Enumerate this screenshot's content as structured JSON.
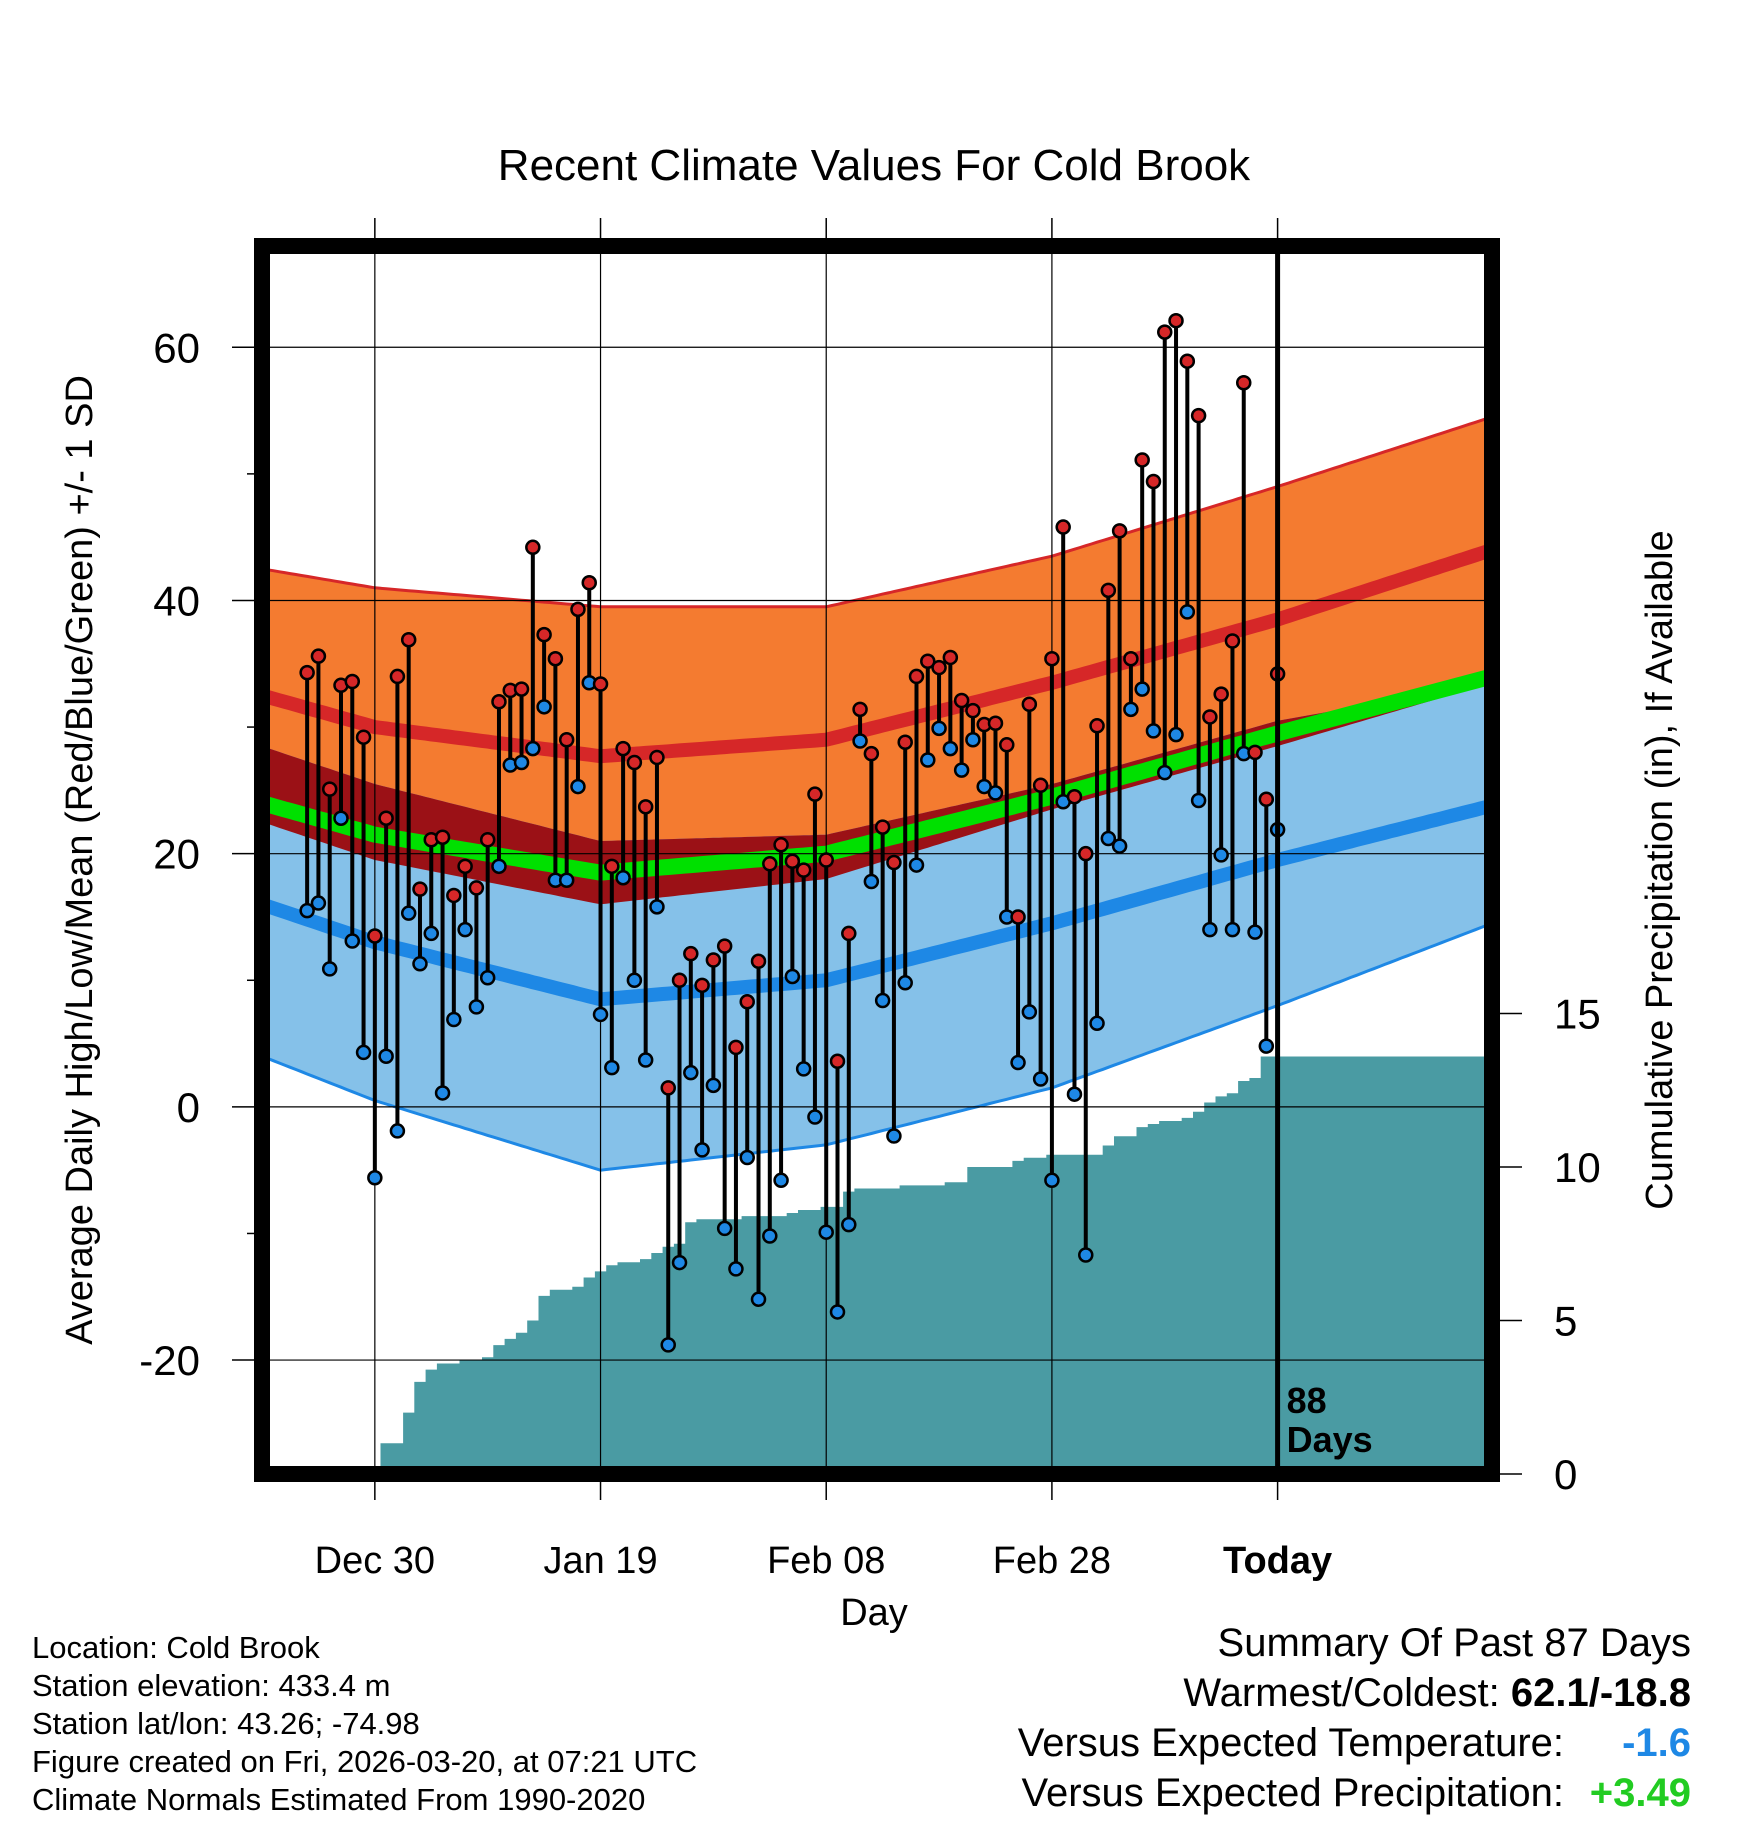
{
  "chart_data": {
    "type": "line",
    "title": "Recent Climate Values For Cold Brook",
    "xlabel": "Day",
    "ylabel": "Average Daily High/Low/Mean (Red/Blue/Green) +/- 1 SD",
    "y2label": "Cumulative Precipitation (in), If Available",
    "ylim": [
      -29,
      68
    ],
    "y2lim": [
      0,
      40
    ],
    "xlim": [
      -10,
      99
    ],
    "yticks": [
      -20,
      0,
      20,
      40,
      60
    ],
    "yticks_minor": [
      -10,
      10,
      30,
      50
    ],
    "y2ticks": [
      0,
      5,
      10,
      15
    ],
    "xticks": [
      {
        "day": 0,
        "label": "Dec 30"
      },
      {
        "day": 20,
        "label": "Jan 19"
      },
      {
        "day": 40,
        "label": "Feb 08"
      },
      {
        "day": 60,
        "label": "Feb 28"
      },
      {
        "day": 80,
        "label": "Today"
      }
    ],
    "today_day": 80,
    "today_label": "88",
    "today_label2": "Days",
    "normal_high": {
      "days": [
        -10,
        0,
        20,
        40,
        60,
        80,
        99
      ],
      "values": [
        32.5,
        30.0,
        27.7,
        29.0,
        33.5,
        38.5,
        44.0
      ]
    },
    "normal_high_upper": {
      "days": [
        -10,
        0,
        20,
        40,
        60,
        80,
        99
      ],
      "values": [
        42.5,
        41.0,
        39.5,
        39.5,
        43.5,
        49.0,
        54.5
      ]
    },
    "normal_high_lower": {
      "days": [
        -10,
        0,
        20,
        40,
        60,
        80,
        99
      ],
      "values": [
        22.5,
        19.5,
        16.0,
        18.0,
        23.5,
        28.5,
        33.5
      ]
    },
    "normal_mean": {
      "days": [
        -10,
        0,
        20,
        40,
        60,
        80,
        99
      ],
      "values": [
        24.0,
        21.5,
        18.5,
        20.0,
        24.5,
        29.5,
        34.0
      ]
    },
    "normal_low": {
      "days": [
        -10,
        0,
        20,
        40,
        60,
        80,
        99
      ],
      "values": [
        16.0,
        13.0,
        8.5,
        10.0,
        14.5,
        19.5,
        23.8
      ]
    },
    "normal_low_upper": {
      "days": [
        -10,
        0,
        20,
        40,
        60,
        80,
        99
      ],
      "values": [
        28.5,
        25.5,
        21.0,
        21.5,
        25.5,
        30.5,
        33.5
      ]
    },
    "normal_low_lower": {
      "days": [
        -10,
        0,
        20,
        40,
        60,
        80,
        99
      ],
      "values": [
        4.0,
        0.5,
        -5.0,
        -3.0,
        1.5,
        8.0,
        14.5
      ]
    },
    "series": [
      {
        "name": "Daily High",
        "color": "#d62728",
        "values": [
          34.3,
          35.6,
          25.1,
          33.3,
          33.6,
          29.2,
          13.5,
          22.8,
          34.0,
          36.9,
          17.2,
          21.1,
          21.3,
          16.7,
          19.0,
          17.3,
          21.1,
          32.0,
          32.9,
          33.0,
          44.2,
          37.3,
          35.4,
          29.0,
          39.3,
          41.4,
          33.4,
          19.0,
          28.3,
          27.2,
          23.7,
          27.6,
          1.5,
          10.0,
          12.1,
          9.6,
          11.6,
          12.7,
          4.7,
          8.3,
          11.5,
          19.2,
          20.7,
          19.4,
          18.7,
          24.7,
          19.5,
          3.6,
          13.7,
          31.4,
          27.9,
          22.1,
          19.3,
          28.8,
          34.0,
          35.2,
          34.7,
          35.5,
          32.1,
          31.3,
          30.2,
          30.3,
          28.6,
          15.0,
          31.8,
          25.4,
          35.4,
          45.8,
          24.5,
          20.0,
          30.1,
          40.8,
          45.5,
          35.4,
          51.1,
          49.4,
          61.2,
          62.1,
          58.9,
          54.6,
          30.8,
          32.6,
          36.8,
          57.2,
          28.0,
          24.3,
          34.2
        ]
      },
      {
        "name": "Daily Low",
        "color": "#1e88e5",
        "values": [
          15.5,
          16.1,
          10.9,
          22.8,
          13.1,
          4.3,
          -5.6,
          4.0,
          -1.9,
          15.3,
          11.3,
          13.7,
          1.1,
          6.9,
          14.0,
          7.9,
          10.2,
          19.0,
          27.0,
          27.2,
          28.3,
          31.6,
          17.9,
          17.9,
          25.3,
          33.5,
          7.3,
          3.1,
          18.1,
          10.0,
          3.7,
          15.8,
          -18.8,
          -12.3,
          2.7,
          -3.4,
          1.7,
          -9.6,
          -12.8,
          -4.0,
          -15.2,
          -10.2,
          -5.8,
          10.3,
          3.0,
          -0.8,
          -9.9,
          -16.2,
          -9.3,
          28.9,
          17.8,
          8.4,
          -2.3,
          9.8,
          19.1,
          27.4,
          29.9,
          28.3,
          26.6,
          29.0,
          25.3,
          24.8,
          15.0,
          3.5,
          7.5,
          2.2,
          -5.8,
          24.1,
          1.0,
          -11.7,
          6.6,
          21.2,
          20.6,
          31.4,
          33.0,
          29.7,
          26.4,
          29.4,
          39.1,
          24.2,
          14.0,
          19.9,
          14.0,
          27.9,
          13.8,
          4.8,
          21.9
        ]
      },
      {
        "name": "Cumulative Precipitation",
        "color": "#4a9ba3",
        "values": [
          0.0,
          0.0,
          0.0,
          0.0,
          0.2,
          0.2,
          0.2,
          1.0,
          1.0,
          2.0,
          3.0,
          3.4,
          3.6,
          3.6,
          3.7,
          3.7,
          3.8,
          4.2,
          4.4,
          4.6,
          5.0,
          5.8,
          6.0,
          6.0,
          6.1,
          6.4,
          6.6,
          6.8,
          6.9,
          6.9,
          7.0,
          7.2,
          7.4,
          7.5,
          8.2,
          8.3,
          8.3,
          8.3,
          8.3,
          8.4,
          8.4,
          8.4,
          8.4,
          8.5,
          8.6,
          8.6,
          8.7,
          8.7,
          9.2,
          9.3,
          9.3,
          9.3,
          9.3,
          9.4,
          9.4,
          9.4,
          9.4,
          9.5,
          9.5,
          10.0,
          10.0,
          10.0,
          10.0,
          10.2,
          10.3,
          10.3,
          10.4,
          10.4,
          10.4,
          10.4,
          10.4,
          10.7,
          11.0,
          11.0,
          11.3,
          11.4,
          11.5,
          11.5,
          11.6,
          11.8,
          12.1,
          12.3,
          12.4,
          12.8,
          12.9,
          13.6,
          13.6
        ]
      }
    ]
  },
  "info": {
    "location": "Location: Cold Brook",
    "elevation": "Station elevation: 433.4 m",
    "latlon": "Station lat/lon: 43.26; -74.98",
    "created": "Figure created on Fri, 2026-03-20, at 07:21 UTC",
    "normals": "Climate Normals Estimated From 1990-2020"
  },
  "summary": {
    "heading": "Summary Of Past 87 Days",
    "warmest_coldest_label": "Warmest/Coldest:",
    "warmest_coldest_value": "62.1/-18.8",
    "temp_label": "Versus Expected Temperature:",
    "temp_value": "-1.6",
    "temp_color": "#1e88e5",
    "precip_label": "Versus Expected Precipitation:",
    "precip_value": "+3.49",
    "precip_color": "#22cc22"
  }
}
